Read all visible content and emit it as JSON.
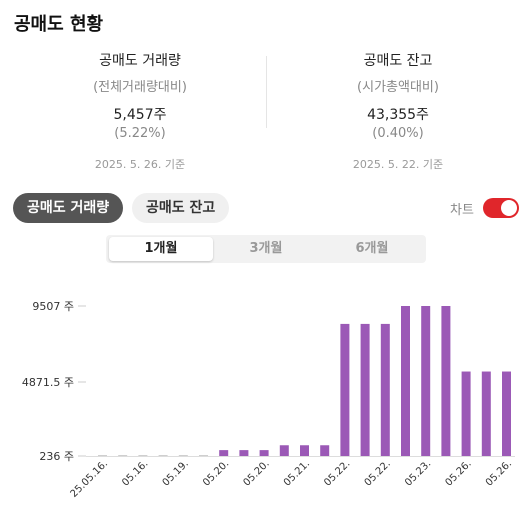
{
  "page": {
    "title": "공매도 현황"
  },
  "stats": {
    "volume": {
      "label": "공매도 거래량",
      "sub": "(전체거래량대비)",
      "value": "5,457주",
      "pct": "(5.22%)",
      "date": "2025. 5. 26. 기준"
    },
    "balance": {
      "label": "공매도 잔고",
      "sub": "(시가총액대비)",
      "value": "43,355주",
      "pct": "(0.40%)",
      "date": "2025. 5. 22. 기준"
    }
  },
  "tabs": {
    "volume": "공매도 거래량",
    "balance": "공매도 잔고"
  },
  "chart_toggle": {
    "label": "차트",
    "on": true
  },
  "periods": [
    "1개월",
    "3개월",
    "6개월"
  ],
  "colors": {
    "bar": "#9b59b6",
    "toggle": "#e0262b",
    "active_tab": "#555555"
  },
  "chart_data": {
    "type": "bar",
    "yticks": [
      "9507 주",
      "4871.5 주",
      "236 주"
    ],
    "ylim": [
      236,
      9507
    ],
    "categories": [
      "25.05.16.",
      "05.16.",
      "05.16.",
      "05.16.",
      "05.19.",
      "05.19.",
      "05.20.",
      "05.20.",
      "05.20.",
      "05.20.",
      "05.21.",
      "05.21.",
      "05.22.",
      "05.22.",
      "05.22.",
      "05.23.",
      "05.23.",
      "05.23.",
      "05.26.",
      "05.26.",
      "05.26."
    ],
    "xtick_labels": [
      "25.05.16.",
      "05.16.",
      "05.19.",
      "05.20.",
      "05.20.",
      "05.21.",
      "05.22.",
      "05.22.",
      "05.23.",
      "05.26.",
      "05.26."
    ],
    "values": [
      236,
      240,
      240,
      240,
      240,
      240,
      600,
      600,
      600,
      900,
      900,
      900,
      8400,
      8400,
      8400,
      9507,
      9507,
      9507,
      5457,
      5457,
      5457
    ]
  }
}
